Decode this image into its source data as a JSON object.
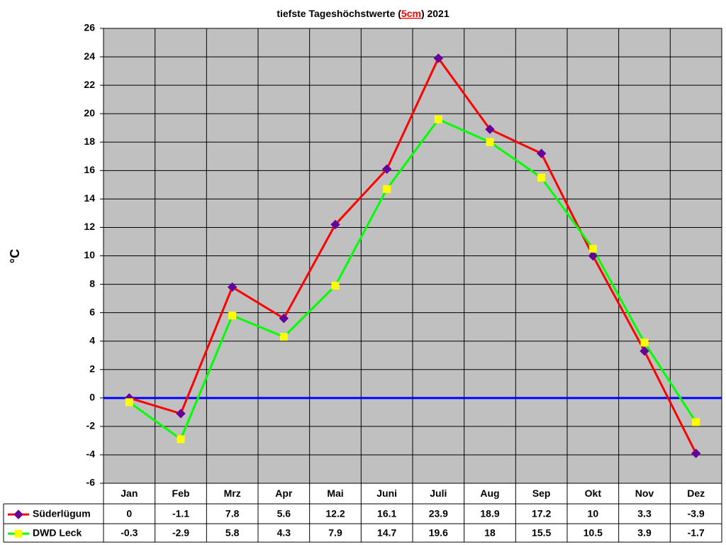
{
  "chart_data": {
    "type": "line",
    "title": {
      "before": "tiefste Tageshöchstwerte (",
      "highlight": "5cm",
      "after": ") 2021"
    },
    "y_label": "°C",
    "categories": [
      "Jan",
      "Feb",
      "Mrz",
      "Apr",
      "Mai",
      "Juni",
      "Juli",
      "Aug",
      "Sep",
      "Okt",
      "Nov",
      "Dez"
    ],
    "series": [
      {
        "name": "Süderlügum",
        "color": "#ff0000",
        "marker": "diamond",
        "marker_color": "#660099",
        "values": [
          0,
          -1.1,
          7.8,
          5.6,
          12.2,
          16.1,
          23.9,
          18.9,
          17.2,
          10,
          3.3,
          -3.9
        ]
      },
      {
        "name": "DWD Leck",
        "color": "#00ff00",
        "marker": "square",
        "marker_color": "#ffff00",
        "values": [
          -0.3,
          -2.9,
          5.8,
          4.3,
          7.9,
          14.7,
          19.6,
          18,
          15.5,
          10.5,
          3.9,
          -1.7
        ]
      }
    ],
    "ylim": [
      -6,
      26
    ],
    "yticks": [
      -6,
      -4,
      -2,
      0,
      2,
      4,
      6,
      8,
      10,
      12,
      14,
      16,
      18,
      20,
      22,
      24,
      26
    ],
    "grid": true,
    "zero_line_color": "#0000ff",
    "plot_background": "#c0c0c0"
  }
}
